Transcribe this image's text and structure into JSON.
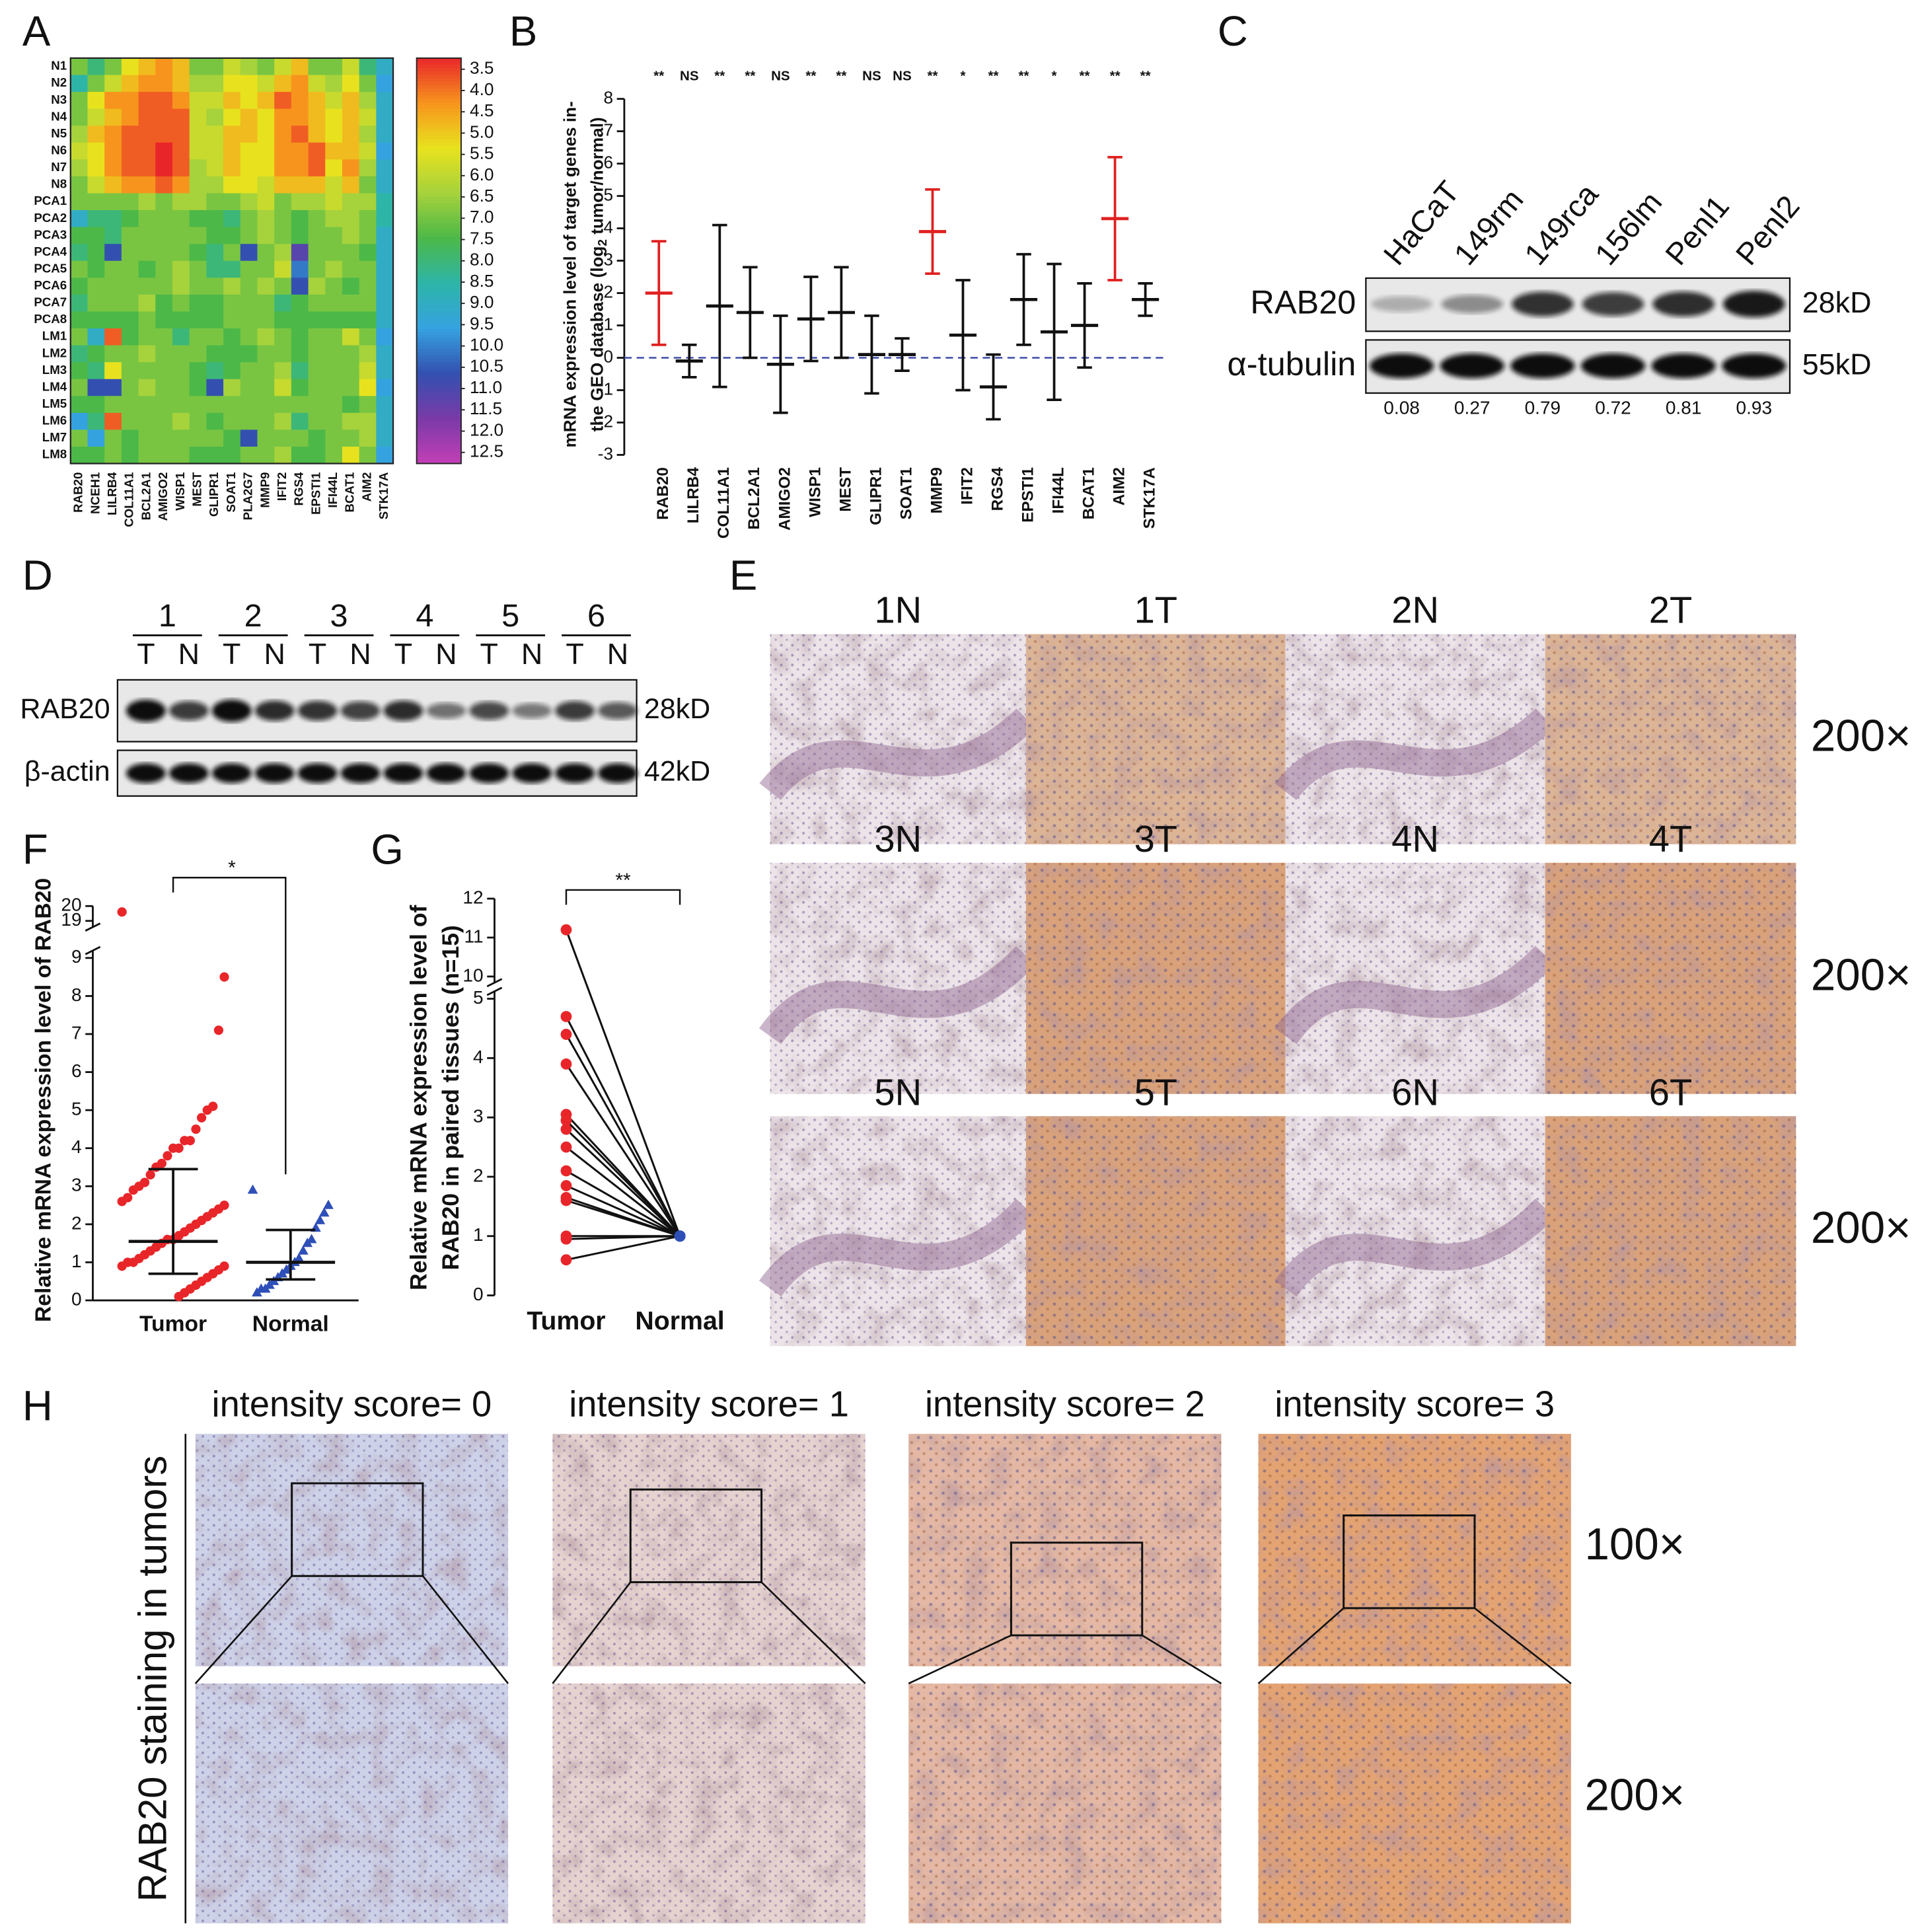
{
  "panel_labels": [
    "A",
    "B",
    "C",
    "D",
    "E",
    "F",
    "G",
    "H"
  ],
  "chart_data": [
    {
      "type": "heatmap",
      "rows": [
        "N1",
        "N2",
        "N3",
        "N4",
        "N5",
        "N6",
        "N7",
        "N8",
        "PCA1",
        "PCA2",
        "PCA3",
        "PCA4",
        "PCA5",
        "PCA6",
        "PCA7",
        "PCA8",
        "LM1",
        "LM2",
        "LM3",
        "LM4",
        "LM5",
        "LM6",
        "LM7",
        "LM8"
      ],
      "columns": [
        "RAB20",
        "NCEH1",
        "LILRB4",
        "COL11A1",
        "BCL2A1",
        "AMIGO2",
        "WISP1",
        "MEST",
        "GLIPR1",
        "SOAT1",
        "PLA2G7",
        "MMP9",
        "IFIT2",
        "RGS4",
        "EPSTI1",
        "IFI44L",
        "BCAT1",
        "AIM2",
        "STK17A"
      ],
      "values": [
        [
          7,
          8,
          7,
          5.5,
          5,
          4.5,
          5,
          7,
          7,
          6,
          6.5,
          7,
          6,
          5,
          7,
          7,
          6,
          8,
          9
        ],
        [
          8.5,
          7,
          6,
          5,
          4.5,
          4.5,
          5,
          6.5,
          6.5,
          5.5,
          5.5,
          6,
          5,
          4.5,
          6,
          6.5,
          5.5,
          7,
          9.5
        ],
        [
          7,
          5.5,
          4.5,
          4.5,
          4,
          4,
          4.5,
          6,
          6,
          5,
          5.5,
          5,
          4,
          4.5,
          5,
          6,
          5,
          6.5,
          9
        ],
        [
          7,
          6,
          5,
          4.5,
          4,
          4,
          4,
          6,
          6.5,
          5.5,
          5,
          5.5,
          4.5,
          4.5,
          5,
          5.5,
          5,
          6,
          9
        ],
        [
          6.5,
          5,
          4.5,
          4,
          4,
          4,
          4,
          6,
          6,
          5,
          5,
          5.5,
          4.5,
          4,
          5,
          5.5,
          5,
          6.5,
          9
        ],
        [
          6,
          5.5,
          4.5,
          4,
          4,
          3.5,
          4,
          6,
          6,
          5,
          5.5,
          5.5,
          4.5,
          4.5,
          4,
          5,
          5,
          6,
          9.5
        ],
        [
          6.5,
          5.5,
          4.5,
          4,
          4,
          3.5,
          4,
          6.5,
          6,
          5,
          5.5,
          5.5,
          4.5,
          4.5,
          4,
          5.5,
          4.5,
          6.5,
          9
        ],
        [
          7,
          6,
          5,
          4.5,
          4.5,
          4,
          4.5,
          6.5,
          6.5,
          5.5,
          5.5,
          6,
          5,
          5,
          5,
          6,
          5,
          7,
          9
        ],
        [
          7,
          7,
          7,
          7,
          6.5,
          7,
          6.5,
          6.5,
          7,
          7,
          6.5,
          6,
          7,
          6.5,
          6.5,
          6,
          6.5,
          6.5,
          8.5
        ],
        [
          9,
          8,
          8,
          7.5,
          7,
          7,
          7,
          7.5,
          7.5,
          8,
          7,
          6.5,
          7,
          7.5,
          7,
          6.5,
          6.5,
          7,
          8.5
        ],
        [
          7.5,
          7.5,
          8,
          7,
          7,
          7,
          7,
          7,
          7.5,
          7.5,
          7,
          6.5,
          7,
          7.5,
          7,
          7,
          6.5,
          7,
          9
        ],
        [
          8,
          7.5,
          10.5,
          7,
          7,
          7,
          7,
          7.5,
          8,
          7,
          10.5,
          7,
          6.5,
          11,
          7,
          7,
          7,
          7.5,
          9
        ],
        [
          7,
          7.5,
          7,
          7,
          7.5,
          7,
          6.5,
          7,
          8,
          8,
          7,
          7,
          6,
          10,
          7,
          6.5,
          7,
          7,
          9
        ],
        [
          7.5,
          7,
          7,
          7,
          7,
          7,
          6.5,
          7,
          7,
          6.5,
          7,
          6.5,
          7,
          10.5,
          6.5,
          7,
          7.5,
          7,
          9
        ],
        [
          8,
          7,
          7,
          7,
          6.5,
          7.5,
          7,
          7.5,
          7.5,
          7,
          7,
          7,
          8,
          7.5,
          7,
          7,
          7,
          7,
          9
        ],
        [
          7.5,
          7.5,
          7.5,
          7.5,
          7,
          7.5,
          7.5,
          7.5,
          7.5,
          7,
          7,
          7,
          7.5,
          7.5,
          7.5,
          7.5,
          7.5,
          7.5,
          9
        ],
        [
          7,
          9,
          4,
          7.5,
          7,
          7,
          8,
          7,
          7,
          7.5,
          7,
          6.5,
          7,
          7.5,
          7,
          7,
          6,
          7,
          9.5
        ],
        [
          8,
          7.5,
          7,
          7,
          6.5,
          7,
          7,
          7,
          7.5,
          7.5,
          7.5,
          7,
          7,
          7.5,
          7,
          7,
          7,
          6.5,
          9
        ],
        [
          7.5,
          8,
          5.5,
          7,
          7,
          7,
          7,
          7.5,
          8,
          7.5,
          7,
          7,
          6.5,
          8,
          7,
          7,
          7,
          6,
          9
        ],
        [
          7,
          10.5,
          10.5,
          7,
          6.5,
          7,
          7,
          7.5,
          10.5,
          6.5,
          7,
          7,
          6,
          7.5,
          7,
          7,
          7,
          5.5,
          9.5
        ],
        [
          7.5,
          7.5,
          7,
          7,
          7,
          7,
          7,
          7,
          7,
          7,
          7,
          7,
          7,
          7,
          7,
          7,
          7.5,
          7,
          9
        ],
        [
          9.5,
          8,
          4,
          7,
          7,
          7,
          6.5,
          7,
          7.5,
          7,
          7,
          7,
          6.5,
          8,
          7,
          7,
          6.5,
          6.5,
          9
        ],
        [
          7,
          9.5,
          7,
          7.5,
          7,
          7,
          7,
          7,
          7,
          7.5,
          10.5,
          7,
          7,
          7,
          7.5,
          7,
          7,
          6.5,
          9
        ],
        [
          7.5,
          7.5,
          7,
          7.5,
          7,
          7,
          7,
          7.5,
          7.5,
          7.5,
          7,
          7,
          6.5,
          7.5,
          7.5,
          7,
          5.5,
          7,
          9.5
        ]
      ],
      "clim": [
        3.5,
        12.5
      ],
      "colorbar_ticks": [
        3.5,
        {
          "value": 4,
          "label": "4.0"
        },
        4.5,
        {
          "value": 5,
          "label": "5.0"
        },
        5.5,
        {
          "value": 6,
          "label": "6.0"
        },
        6.5,
        {
          "value": 7,
          "label": "7.0"
        },
        7.5,
        {
          "value": 8,
          "label": "8.0"
        },
        8.5,
        {
          "value": 9,
          "label": "9.0"
        },
        9.5,
        {
          "value": 10,
          "label": "10.0"
        },
        10.5,
        {
          "value": 11,
          "label": "11.0"
        },
        11.5,
        {
          "value": 12,
          "label": "12.0"
        },
        12.5
      ],
      "colorscale": [
        "#e8262a",
        "#f7941d",
        "#e8e21e",
        "#a6d23c",
        "#4cb848",
        "#2db5a8",
        "#35a2e0",
        "#3350b0",
        "#7a3aa8",
        "#c23fb5"
      ]
    },
    {
      "type": "dot",
      "ylabel": "mRNA expression level of target genes in-",
      "ylabel2": [
        "the GEO database (log",
        "2",
        " tumor/normal)"
      ],
      "categories": [
        "RAB20",
        "LILRB4",
        "COL11A1",
        "BCL2A1",
        "AMIGO2",
        "WISP1",
        "MEST",
        "GLIPR1",
        "SOAT1",
        "MMP9",
        "IFIT2",
        "RGS4",
        "EPSTI1",
        "IFI44L",
        "BCAT1",
        "AIM2",
        "STK17A"
      ],
      "values": [
        2.0,
        -0.1,
        1.6,
        1.4,
        -0.2,
        1.2,
        1.4,
        0.1,
        0.1,
        3.9,
        0.7,
        -0.9,
        1.8,
        0.8,
        1.0,
        4.3,
        1.8
      ],
      "errors": [
        1.6,
        0.5,
        2.5,
        1.4,
        1.5,
        1.3,
        1.4,
        1.2,
        0.5,
        1.3,
        1.7,
        1.0,
        1.4,
        2.1,
        1.3,
        1.9,
        0.5
      ],
      "colors": [
        "#e02020",
        "#111111",
        "#111111",
        "#111111",
        "#111111",
        "#111111",
        "#111111",
        "#111111",
        "#111111",
        "#e02020",
        "#111111",
        "#111111",
        "#111111",
        "#111111",
        "#111111",
        "#e02020",
        "#111111"
      ],
      "significance": [
        "**",
        "NS",
        "**",
        "**",
        "NS",
        "**",
        "**",
        "NS",
        "NS",
        "**",
        "*",
        "**",
        "**",
        "*",
        "**",
        "**",
        "**"
      ],
      "ylim": [
        -3,
        8
      ],
      "yticks": [
        -3,
        -2,
        -1,
        0,
        1,
        2,
        3,
        4,
        5,
        6,
        7,
        8
      ],
      "refline": 0
    },
    {
      "type": "dot-groups",
      "ylabel": "Relative mRNA expression level of RAB20",
      "ylim": [
        0,
        9
      ],
      "yticks": [
        0,
        1,
        2,
        3,
        4,
        5,
        6,
        7,
        8,
        9
      ],
      "ylim_upper": [
        19,
        20
      ],
      "yticks_upper": [
        19,
        20
      ],
      "significance": "*",
      "groups": [
        {
          "label": "Tumor",
          "color": "#e8262a",
          "marker": "circle",
          "center": 1.55,
          "lower": 0.7,
          "upper": 3.45,
          "points": [
            19.6,
            8.5,
            7.1,
            5.1,
            5,
            4.8,
            4.5,
            4.2,
            4.2,
            4,
            4,
            3.8,
            3.6,
            3.5,
            3.3,
            3.1,
            3,
            2.9,
            2.7,
            2.6,
            2.5,
            2.4,
            2.3,
            2.2,
            2.1,
            2,
            1.9,
            1.8,
            1.7,
            1.6,
            1.6,
            1.5,
            1.4,
            1.3,
            1.2,
            1.1,
            1,
            1,
            0.9,
            0.9,
            0.8,
            0.7,
            0.6,
            0.5,
            0.4,
            0.3,
            0.2,
            0.1
          ]
        },
        {
          "label": "Normal",
          "color": "#2f4fb8",
          "marker": "triangle",
          "center": 1.0,
          "lower": 0.55,
          "upper": 1.85,
          "points": [
            2.9,
            2.5,
            2.3,
            2.1,
            1.9,
            1.6,
            1.5,
            1.3,
            1.1,
            1,
            0.9,
            0.8,
            0.7,
            0.6,
            0.5,
            0.4,
            0.3,
            0.3,
            0.2
          ]
        }
      ]
    },
    {
      "type": "paired",
      "ylabel": "Relative mRNA expression level of",
      "ylabel2": "RAB20 in paired tissues (n=15)",
      "categories": [
        "Tumor",
        "Normal"
      ],
      "colors": [
        "#e8262a",
        "#2f4fb8"
      ],
      "tumor": [
        11.2,
        4.7,
        4.4,
        3.9,
        3.05,
        2.95,
        2.8,
        2.5,
        2.1,
        1.85,
        1.65,
        1.6,
        1.0,
        0.95,
        0.6
      ],
      "normal": [
        1,
        1,
        1,
        1,
        1,
        1,
        1,
        1,
        1,
        1,
        1,
        1,
        1,
        1,
        1
      ],
      "ylim": [
        0,
        5
      ],
      "yticks": [
        0,
        1,
        2,
        3,
        4,
        5
      ],
      "ylim_upper": [
        10,
        12
      ],
      "yticks_upper": [
        10,
        11,
        12
      ],
      "significance": "**"
    }
  ],
  "blot_c": {
    "lanes": [
      "HaCaT",
      "149rm",
      "149rca",
      "156lm",
      "Penl1",
      "Penl2"
    ],
    "bands": [
      "RAB20",
      "α-tubulin"
    ],
    "sizes": [
      "28kD",
      "55kD"
    ],
    "ratios": [
      0.08,
      0.27,
      0.79,
      0.72,
      0.81,
      0.93
    ]
  },
  "blot_d": {
    "groups": [
      "1",
      "2",
      "3",
      "4",
      "5",
      "6"
    ],
    "lanes": [
      "T",
      "N"
    ],
    "bands": [
      "RAB20",
      "β-actin"
    ],
    "sizes": [
      "28kD",
      "42kD"
    ]
  },
  "ihc_e": {
    "labels": [
      "1N",
      "1T",
      "2N",
      "2T",
      "3N",
      "3T",
      "4N",
      "4T",
      "5N",
      "5T",
      "6N",
      "6T"
    ],
    "magnification": [
      "200×",
      "200×",
      "200×"
    ]
  },
  "ihc_h": {
    "titles": [
      "intensity score= 0",
      "intensity score= 1",
      "intensity score= 2",
      "intensity score= 3"
    ],
    "ylabel": "RAB20 staining in tumors",
    "magnification": [
      "100×",
      "200×"
    ]
  }
}
